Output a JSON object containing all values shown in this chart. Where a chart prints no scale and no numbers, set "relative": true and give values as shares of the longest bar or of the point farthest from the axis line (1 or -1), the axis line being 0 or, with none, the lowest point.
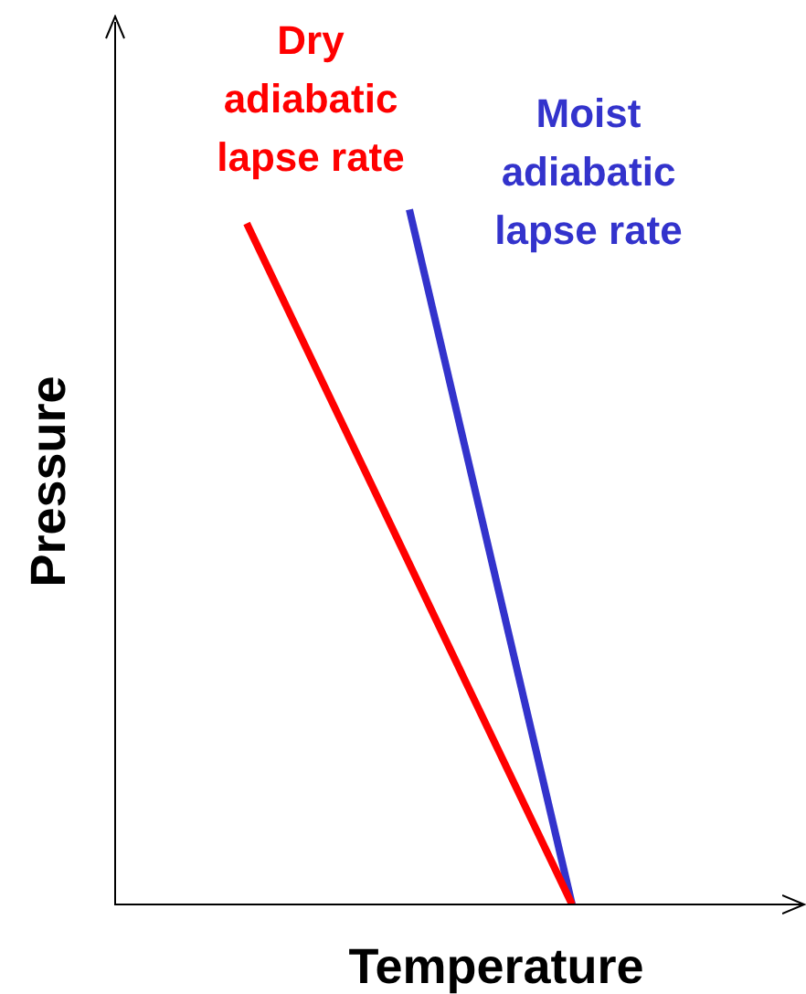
{
  "chart_data": {
    "type": "line",
    "relative": true,
    "xlabel": "Temperature",
    "ylabel": "Pressure",
    "legend": false,
    "marker": "none",
    "line_style": "solid",
    "categories": [
      null,
      null,
      null
    ],
    "series": [
      {
        "name": "Dry adiabatic lapse rate",
        "color": "#ff0000",
        "values": [
          0.98,
          null,
          0
        ]
      },
      {
        "name": "Moist adiabatic lapse rate",
        "color": "#3333cc",
        "values": [
          null,
          1,
          0
        ]
      }
    ]
  }
}
